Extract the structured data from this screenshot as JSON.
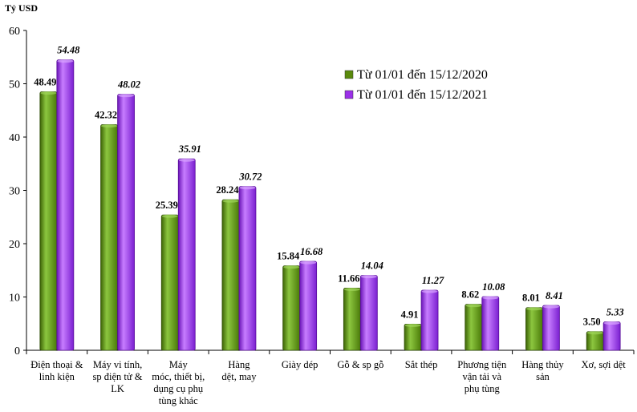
{
  "chart_data": {
    "type": "bar",
    "ylabel": "Tỷ USD",
    "ylim": [
      0,
      60
    ],
    "yticks": [
      0,
      10,
      20,
      30,
      40,
      50,
      60
    ],
    "grid": false,
    "legend_position": "top-right",
    "categories": [
      [
        "Điện thoại &",
        "linh kiện"
      ],
      [
        "Máy vi tính,",
        "sp điện tử &",
        "LK"
      ],
      [
        "Máy",
        "móc, thiết bị,",
        "dụng cụ phụ",
        "tùng khác"
      ],
      [
        "Hàng",
        "dệt, may"
      ],
      [
        "Giày dép"
      ],
      [
        "Gỗ & sp gỗ"
      ],
      [
        "Sắt thép"
      ],
      [
        "Phương tiện",
        "vận tải và",
        "phụ tùng"
      ],
      [
        "Hàng thủy",
        "sản"
      ],
      [
        "Xơ, sợi dệt"
      ]
    ],
    "series": [
      {
        "name": "Từ 01/01 đến 15/12/2020",
        "color": "#5a8a0c",
        "values": [
          48.49,
          42.32,
          25.39,
          28.24,
          15.84,
          11.66,
          4.91,
          8.62,
          8.01,
          3.5
        ],
        "labels": [
          "48.49",
          "42.32",
          "25.39",
          "28.24",
          "15.84",
          "11.66",
          "4.91",
          "8.62",
          "8.01",
          "3.50"
        ]
      },
      {
        "name": "Từ 01/01 đến 15/12/2021",
        "color": "#9b30e8",
        "values": [
          54.48,
          48.02,
          35.91,
          30.72,
          16.68,
          14.04,
          11.27,
          10.08,
          8.41,
          5.33
        ],
        "labels": [
          "54.48",
          "48.02",
          "35.91",
          "30.72",
          "16.68",
          "14.04",
          "11.27",
          "10.08",
          "8.41",
          "5.33"
        ]
      }
    ]
  }
}
